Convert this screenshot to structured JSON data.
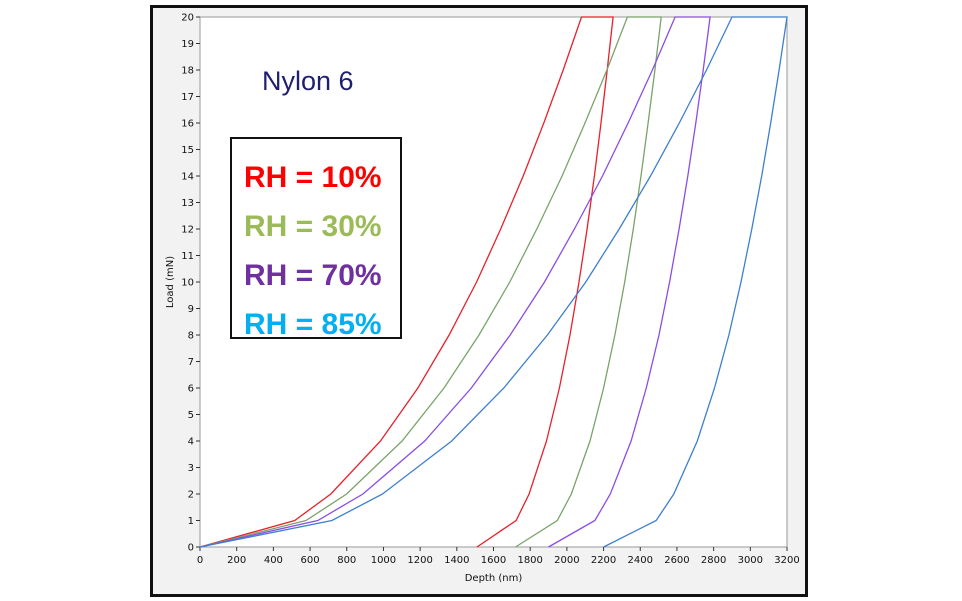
{
  "chart_data": {
    "type": "line",
    "title": "Nylon 6",
    "xlabel": "Depth (nm)",
    "ylabel": "Load (mN)",
    "xlim": [
      0,
      3200
    ],
    "ylim": [
      0,
      20
    ],
    "xticks": [
      0,
      200,
      400,
      600,
      800,
      1000,
      1200,
      1400,
      1600,
      1800,
      2000,
      2200,
      2400,
      2600,
      2800,
      3000,
      3200
    ],
    "yticks": [
      0,
      1,
      2,
      3,
      4,
      5,
      6,
      7,
      8,
      9,
      10,
      11,
      12,
      13,
      14,
      15,
      16,
      17,
      18,
      19,
      20
    ],
    "grid": false,
    "legend_placement": "top-left",
    "series": [
      {
        "name": "RH = 10%",
        "color": "#e8202a",
        "legend_color": "#ff0000",
        "x": [
          0,
          516,
          713,
          984,
          1188,
          1358,
          1508,
          1639,
          1762,
          1874,
          1980,
          2080,
          2252,
          2220,
          2186,
          2150,
          2110,
          2066,
          2017,
          1959,
          1889,
          1794,
          1723,
          1510
        ],
        "y": [
          0,
          1,
          2,
          4,
          6,
          8,
          10,
          12,
          14,
          16,
          18,
          20,
          20,
          18,
          16,
          14,
          12,
          10,
          8,
          6,
          4,
          2,
          1,
          0
        ]
      },
      {
        "name": "RH = 30%",
        "color": "#7aa36a",
        "legend_color": "#9bbb59",
        "x": [
          0,
          578,
          799,
          1102,
          1330,
          1521,
          1689,
          1836,
          1974,
          2099,
          2218,
          2330,
          2514,
          2480,
          2443,
          2404,
          2362,
          2315,
          2262,
          2200,
          2126,
          2024,
          1948,
          1720
        ],
        "y": [
          0,
          1,
          2,
          4,
          6,
          8,
          10,
          12,
          14,
          16,
          18,
          20,
          20,
          18,
          16,
          14,
          12,
          10,
          8,
          6,
          4,
          2,
          1,
          0
        ]
      },
      {
        "name": "RH = 70%",
        "color": "#8a4de8",
        "legend_color": "#7030a0",
        "x": [
          0,
          642,
          888,
          1225,
          1479,
          1691,
          1878,
          2041,
          2194,
          2334,
          2466,
          2590,
          2781,
          2743,
          2703,
          2659,
          2612,
          2560,
          2502,
          2433,
          2350,
          2237,
          2153,
          1900
        ],
        "y": [
          0,
          1,
          2,
          4,
          6,
          8,
          10,
          12,
          14,
          16,
          18,
          20,
          20,
          18,
          16,
          14,
          12,
          10,
          8,
          6,
          4,
          2,
          1,
          0
        ]
      },
      {
        "name": "RH = 85%",
        "color": "#3d7fd0",
        "legend_color": "#00b0f0",
        "x": [
          0,
          719,
          995,
          1372,
          1656,
          1894,
          2103,
          2285,
          2456,
          2613,
          2761,
          2900,
          3200,
          3157,
          3111,
          3062,
          3008,
          2949,
          2883,
          2805,
          2711,
          2583,
          2487,
          2200
        ],
        "y": [
          0,
          1,
          2,
          4,
          6,
          8,
          10,
          12,
          14,
          16,
          18,
          20,
          20,
          18,
          16,
          14,
          12,
          10,
          8,
          6,
          4,
          2,
          1,
          0
        ]
      }
    ]
  }
}
